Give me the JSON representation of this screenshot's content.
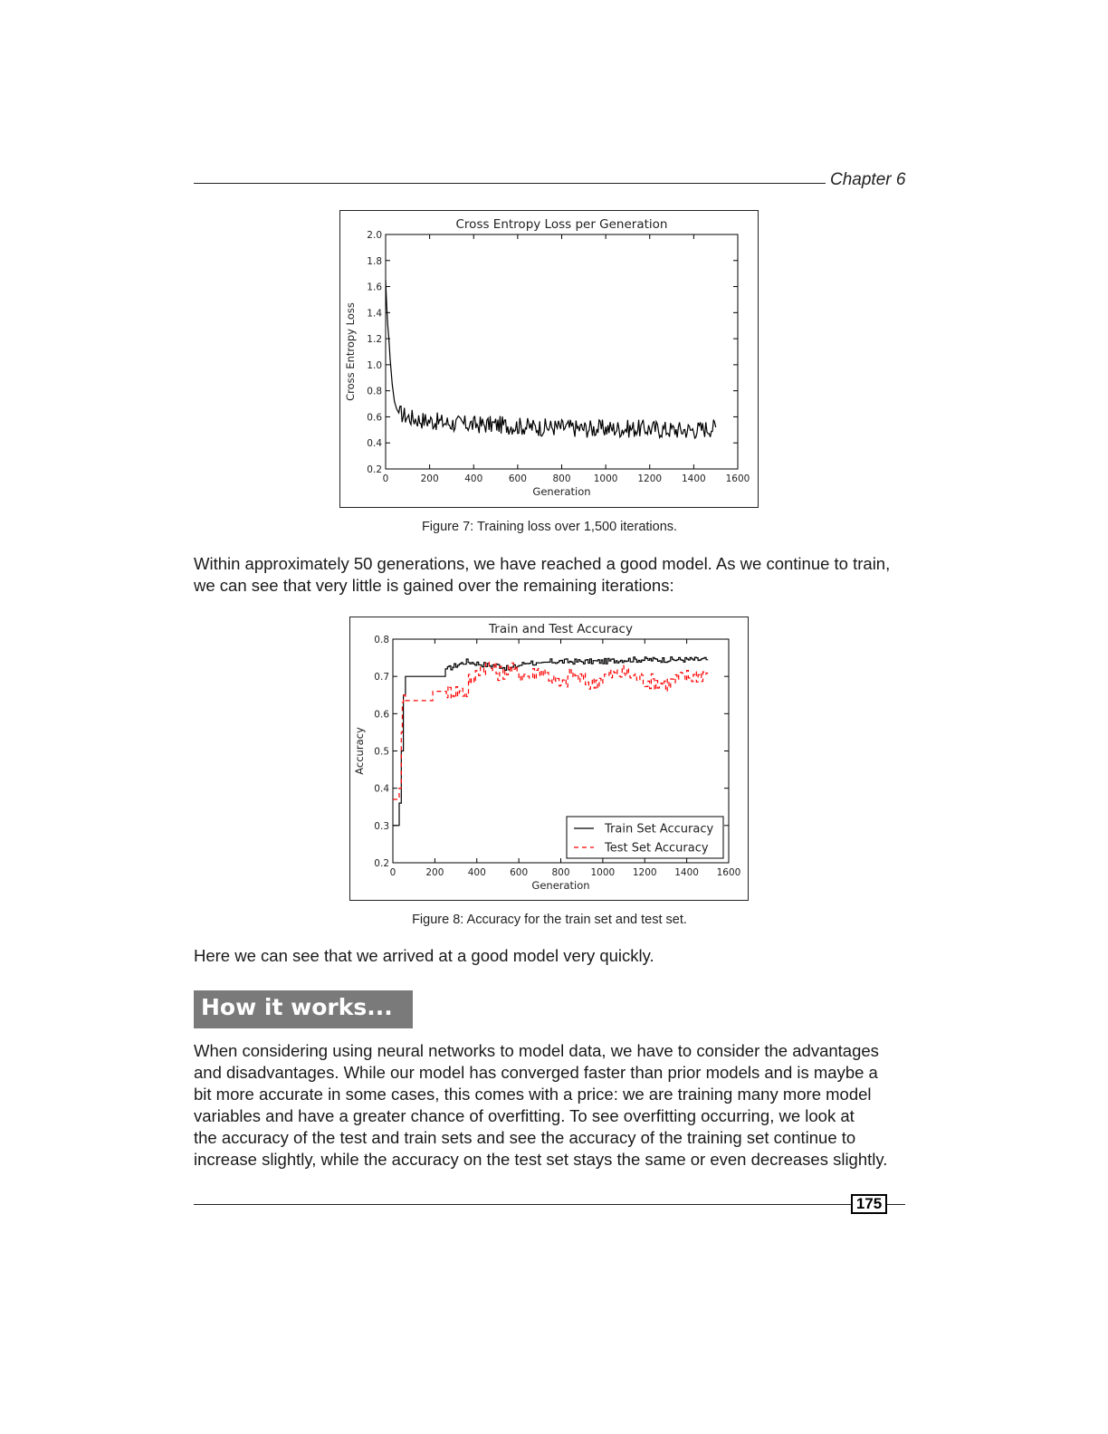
{
  "header": {
    "chapter": "Chapter 6"
  },
  "figure1": {
    "caption": "Figure 7: Training loss over 1,500 iterations.",
    "chart_data": {
      "type": "line",
      "title": "Cross Entropy Loss per Generation",
      "xlabel": "Generation",
      "ylabel": "Cross Entropy Loss",
      "xlim": [
        0,
        1600
      ],
      "ylim": [
        0.2,
        2.0
      ],
      "xticks": [
        "0",
        "200",
        "400",
        "600",
        "800",
        "1000",
        "1200",
        "1400",
        "1600"
      ],
      "yticks": [
        "0.2",
        "0.4",
        "0.6",
        "0.8",
        "1.0",
        "1.2",
        "1.4",
        "1.6",
        "1.8",
        "2.0"
      ],
      "grid": false,
      "series": [
        {
          "color": "#000000",
          "style": "solid",
          "x": [
            0,
            5,
            10,
            15,
            20,
            25,
            30,
            40,
            50,
            60,
            75,
            100,
            150,
            200,
            300,
            400,
            500,
            600,
            700,
            800,
            900,
            1000,
            1100,
            1200,
            1300,
            1400,
            1500
          ],
          "y": [
            1.65,
            1.45,
            1.3,
            1.2,
            1.05,
            0.95,
            0.85,
            0.72,
            0.66,
            0.63,
            0.62,
            0.6,
            0.58,
            0.57,
            0.55,
            0.54,
            0.54,
            0.53,
            0.52,
            0.52,
            0.51,
            0.51,
            0.51,
            0.51,
            0.5,
            0.5,
            0.52
          ]
        }
      ]
    }
  },
  "paragraph1": "Within approximately 50 generations, we have reached a good model. As we continue to train, we can see that very little is gained over the remaining iterations:",
  "figure2": {
    "caption": "Figure 8: Accuracy for the train set and test set.",
    "chart_data": {
      "type": "line",
      "title": "Train and Test Accuracy",
      "xlabel": "Generation",
      "ylabel": "Accuracy",
      "xlim": [
        0,
        1600
      ],
      "ylim": [
        0.2,
        0.8
      ],
      "xticks": [
        "0",
        "200",
        "400",
        "600",
        "800",
        "1000",
        "1200",
        "1400",
        "1600"
      ],
      "yticks": [
        "0.2",
        "0.3",
        "0.4",
        "0.5",
        "0.6",
        "0.7",
        "0.8"
      ],
      "grid": false,
      "legend": "lower-right",
      "series": [
        {
          "name": "Train Set Accuracy",
          "color": "#000000",
          "style": "solid",
          "x": [
            0,
            25,
            30,
            40,
            50,
            60,
            70,
            100,
            150,
            200,
            240,
            250,
            260,
            300,
            350,
            400,
            450,
            500,
            550,
            600,
            650,
            700,
            750,
            800,
            850,
            900,
            1000,
            1100,
            1200,
            1300,
            1400,
            1500
          ],
          "y": [
            0.3,
            0.3,
            0.36,
            0.5,
            0.65,
            0.7,
            0.7,
            0.7,
            0.7,
            0.7,
            0.7,
            0.72,
            0.72,
            0.73,
            0.74,
            0.735,
            0.73,
            0.73,
            0.72,
            0.73,
            0.74,
            0.73,
            0.74,
            0.74,
            0.74,
            0.74,
            0.74,
            0.745,
            0.745,
            0.745,
            0.745,
            0.745
          ]
        },
        {
          "name": "Test Set Accuracy",
          "color": "#ff0000",
          "style": "dashed",
          "x": [
            0,
            25,
            30,
            40,
            45,
            50,
            60,
            70,
            100,
            150,
            180,
            190,
            200,
            240,
            300,
            350,
            360,
            380,
            400,
            450,
            500,
            550,
            600,
            650,
            700,
            750,
            800,
            850,
            900,
            950,
            1000,
            1100,
            1200,
            1300,
            1400,
            1500
          ],
          "y": [
            0.37,
            0.37,
            0.4,
            0.55,
            0.63,
            0.65,
            0.635,
            0.635,
            0.635,
            0.635,
            0.635,
            0.66,
            0.66,
            0.66,
            0.66,
            0.66,
            0.7,
            0.68,
            0.72,
            0.73,
            0.71,
            0.72,
            0.71,
            0.7,
            0.72,
            0.7,
            0.67,
            0.71,
            0.69,
            0.68,
            0.7,
            0.71,
            0.69,
            0.68,
            0.7,
            0.71
          ]
        }
      ]
    }
  },
  "paragraph2": "Here we can see that we arrived at a good model very quickly.",
  "section_heading": "How it works...",
  "paragraph3": [
    "When considering using neural networks to model data, we have to consider the advantages",
    "and disadvantages. While our model has converged faster than prior models and is maybe a",
    "bit more accurate in some cases, this comes with a price: we are training many more model",
    "variables and have a greater chance of overfitting. To see overfitting occurring, we look at",
    "the accuracy of the test and train sets and see the accuracy of the training set continue to",
    "increase slightly, while the accuracy on the test set stays the same or even decreases slightly."
  ],
  "footer": {
    "page_number": "175"
  }
}
